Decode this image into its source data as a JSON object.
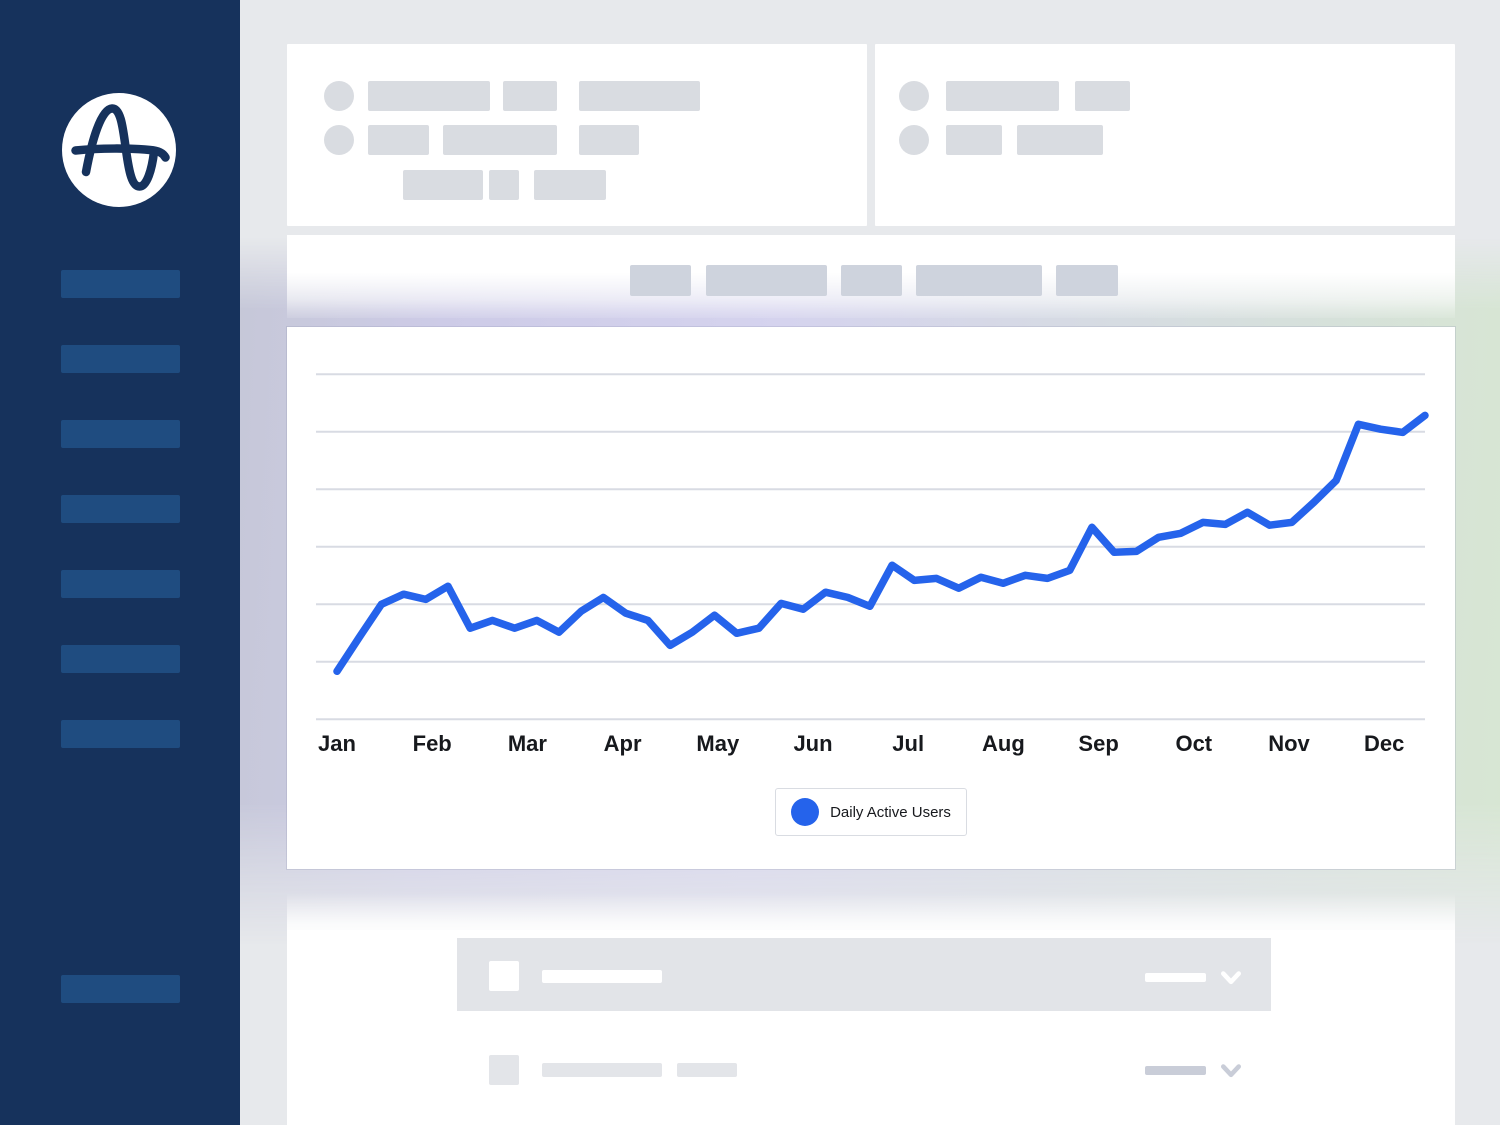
{
  "theme": {
    "sidebar_bg": "#16325c",
    "sidebar_item": "#1f4c80",
    "main_bg": "#e7e9ec",
    "card_bg": "#ffffff",
    "placeholder": "#d9dce1",
    "chip": "#ced3dd",
    "gridline": "#d8dbe3",
    "line": "#2563eb",
    "label": "#17191d",
    "legend_border": "#d9dce2",
    "row_bg": "#e2e4e8",
    "row_placeholder": "#e3e5e9",
    "row_dark": "#c9cdd8",
    "glow_left": "#c6c8d8",
    "glow_mid": "#d5d3ee",
    "glow_right": "#d7e6d3"
  },
  "icons": {
    "logo": "amplitude-sine-wave-logo",
    "row_expander": "chevron-down"
  },
  "chart_data": {
    "type": "line",
    "x_categories": [
      "Jan",
      "Feb",
      "Mar",
      "Apr",
      "May",
      "Jun",
      "Jul",
      "Aug",
      "Sep",
      "Oct",
      "Nov",
      "Dec"
    ],
    "x_unit": "week",
    "points_per_month": 4.29,
    "series": [
      {
        "name": "Daily Active Users",
        "color": "#2563eb",
        "values": [
          16.7,
          28.5,
          40.0,
          43.5,
          41.7,
          46.3,
          31.7,
          34.4,
          31.7,
          34.4,
          30.3,
          37.6,
          42.4,
          36.9,
          34.4,
          25.7,
          30.3,
          36.2,
          29.9,
          31.7,
          40.3,
          38.3,
          44.2,
          42.4,
          39.3,
          53.6,
          48.3,
          49.0,
          45.6,
          49.4,
          47.3,
          50.1,
          49.0,
          51.8,
          66.8,
          58.1,
          58.4,
          63.3,
          64.7,
          68.5,
          67.8,
          72.0,
          67.5,
          68.5,
          75.5,
          83.1,
          102.6,
          100.9,
          99.8,
          105.7
        ]
      }
    ],
    "y_axis": {
      "min": 0,
      "max": 120,
      "gridline_count": 7,
      "gridline_step": 20,
      "tick_labels": "none"
    },
    "grid": "horizontal-only",
    "legend": {
      "position": "bottom-center",
      "label": "Daily Active Users"
    },
    "note": "No numeric y-axis labels are shown; values are relative units where gridlines are 20 apart and the x-axis baseline is 0."
  }
}
